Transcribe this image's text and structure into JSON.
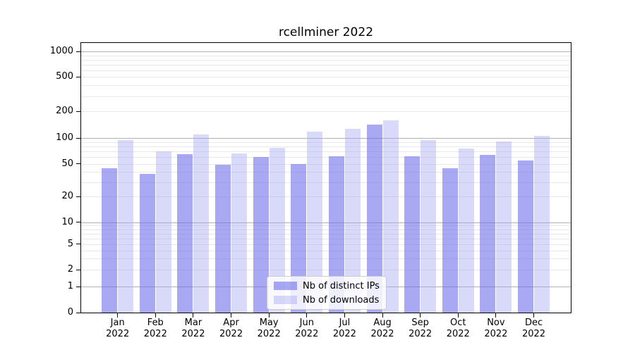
{
  "figure": {
    "background": "#ffffff"
  },
  "chart_data": {
    "type": "bar",
    "title": "rcellminer 2022",
    "categories": [
      "Jan",
      "Feb",
      "Mar",
      "Apr",
      "May",
      "Jun",
      "Jul",
      "Aug",
      "Sep",
      "Oct",
      "Nov",
      "Dec"
    ],
    "year_label": "2022",
    "yscale": "log",
    "ylim": [
      0,
      1290
    ],
    "y_ticks": [
      0,
      1,
      2,
      5,
      10,
      20,
      50,
      100,
      200,
      500,
      1000
    ],
    "grid": "on",
    "legend_position": "lower center",
    "series": [
      {
        "name": "Nb of distinct IPs",
        "color": "#6e6eeb",
        "alpha": 0.6,
        "values": [
          44,
          38,
          65,
          49,
          60,
          50,
          61,
          142,
          61,
          44,
          64,
          55
        ]
      },
      {
        "name": "Nb of downloads",
        "color": "#a5a5f0",
        "alpha": 0.42,
        "values": [
          94,
          70,
          110,
          66,
          77,
          118,
          128,
          158,
          95,
          76,
          91,
          106
        ]
      }
    ],
    "colors": {
      "major_grid": "#b0b0b0",
      "minor_grid": "#e8e8e8",
      "axis": "#000000",
      "text": "#000000"
    }
  }
}
